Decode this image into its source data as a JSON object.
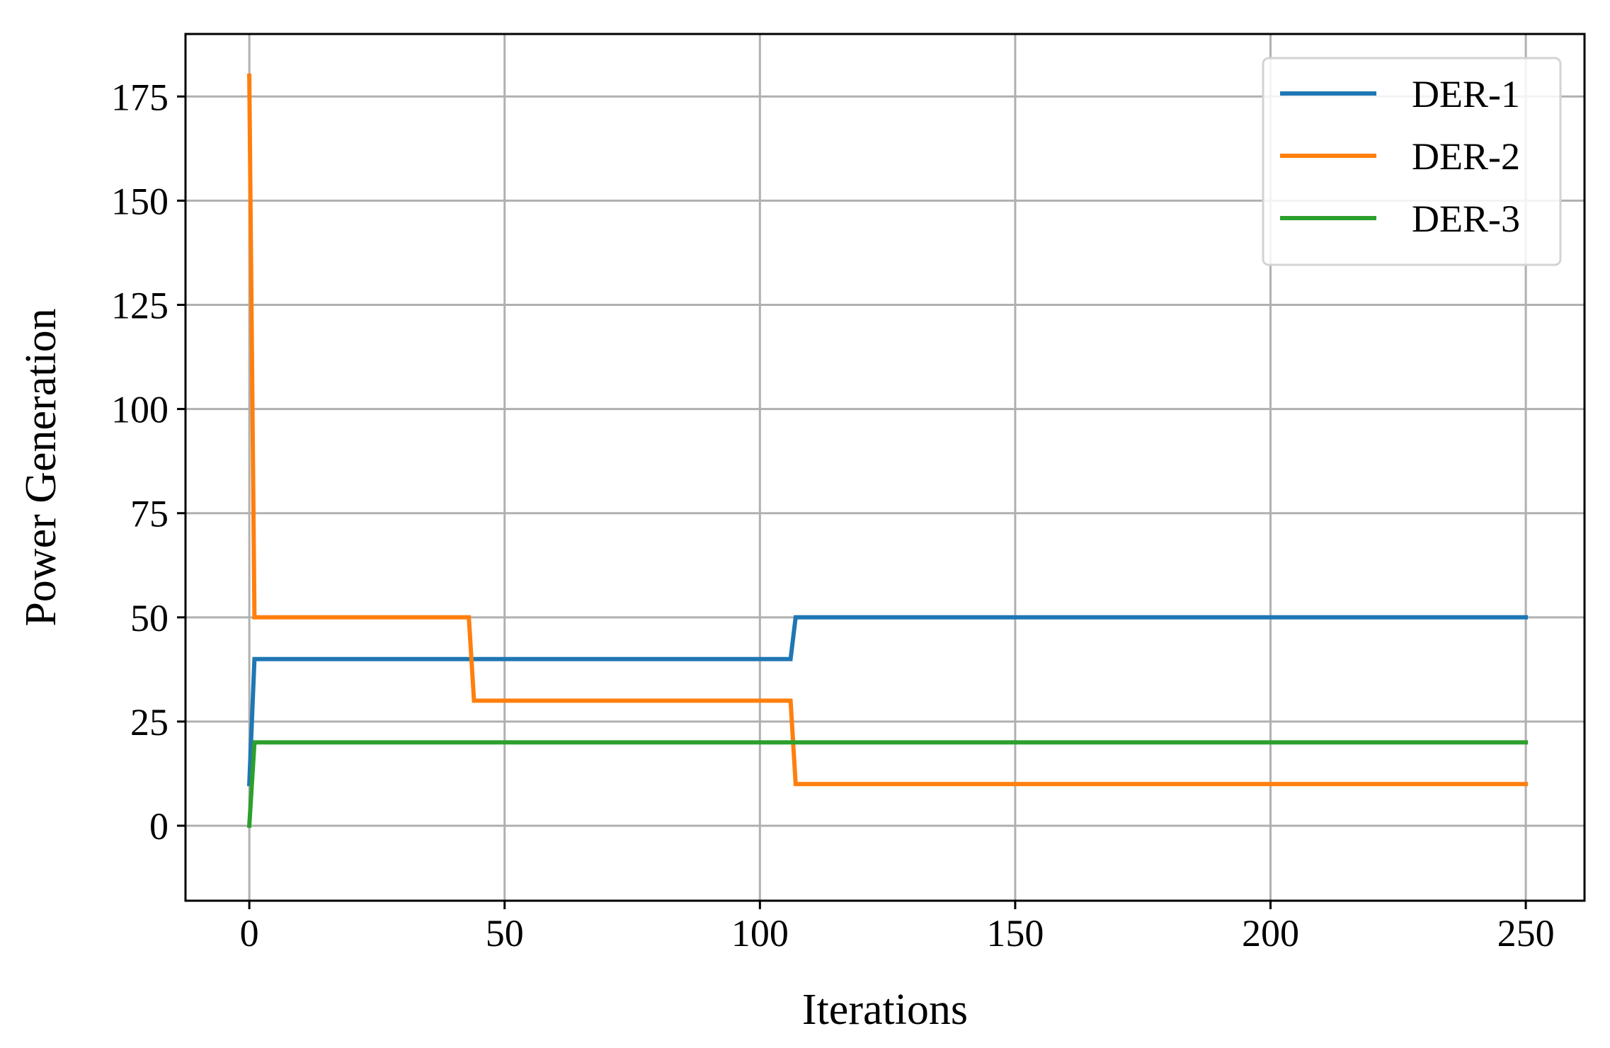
{
  "chart_data": {
    "type": "line",
    "title": "",
    "xlabel": "Iterations",
    "ylabel": "Power Generation",
    "xlim": [
      -12.5,
      261.5
    ],
    "ylim": [
      -18,
      190
    ],
    "xticks": [
      0,
      50,
      100,
      150,
      200,
      250
    ],
    "yticks": [
      0,
      25,
      50,
      75,
      100,
      125,
      150,
      175
    ],
    "xtick_labels": [
      "0",
      "50",
      "100",
      "150",
      "200",
      "250"
    ],
    "ytick_labels": [
      "0",
      "25",
      "50",
      "75",
      "100",
      "125",
      "150",
      "175"
    ],
    "grid": true,
    "legend_position": "top-right",
    "series": [
      {
        "name": "DER-1",
        "color": "#1f77b4",
        "x": [
          0,
          1,
          106,
          107,
          250
        ],
        "y": [
          10,
          40,
          40,
          50,
          50
        ]
      },
      {
        "name": "DER-2",
        "color": "#ff7f0e",
        "x": [
          0,
          1,
          43,
          44,
          106,
          107,
          250
        ],
        "y": [
          180,
          50,
          50,
          30,
          30,
          10,
          10
        ]
      },
      {
        "name": "DER-3",
        "color": "#2ca02c",
        "x": [
          0,
          1,
          250
        ],
        "y": [
          0,
          20,
          20
        ]
      }
    ]
  }
}
